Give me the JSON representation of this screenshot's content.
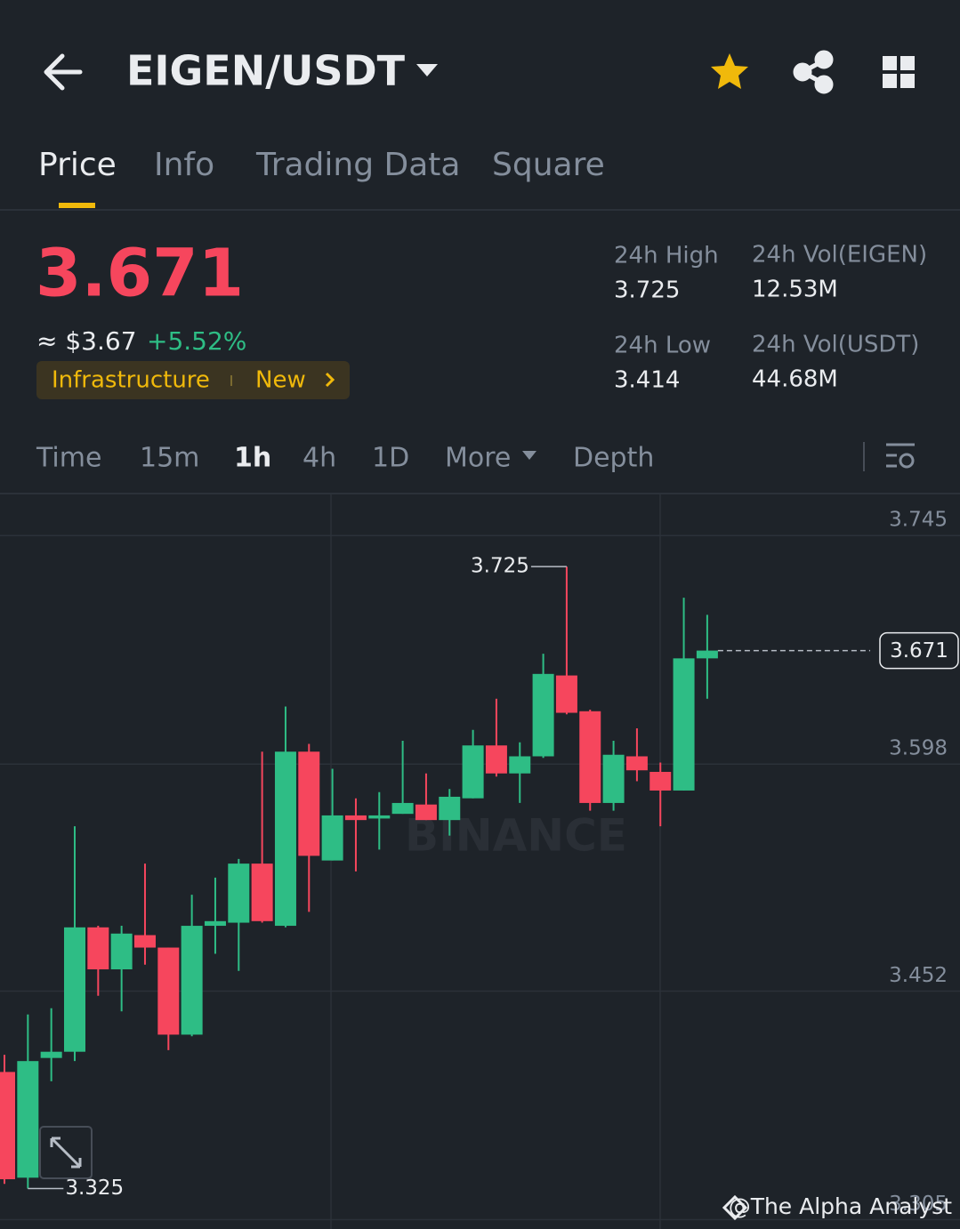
{
  "header": {
    "pair": "EIGEN/USDT"
  },
  "tabs": [
    "Price",
    "Info",
    "Trading Data",
    "Square"
  ],
  "price": {
    "value": "3.671",
    "fiat": "≈ $3.67",
    "change": "+5.52%",
    "tags": [
      "Infrastructure",
      "New"
    ]
  },
  "stats": [
    {
      "label": "24h High",
      "value": "3.725"
    },
    {
      "label": "24h Vol(EIGEN)",
      "value": "12.53M"
    },
    {
      "label": "24h Low",
      "value": "3.414"
    },
    {
      "label": "24h Vol(USDT)",
      "value": "44.68M"
    }
  ],
  "intervals": [
    "Time",
    "15m",
    "1h",
    "4h",
    "1D",
    "More",
    "Depth"
  ],
  "watermark": "BINANCE",
  "credit": "@The Alpha Analyst",
  "chart_data": {
    "type": "candlestick",
    "up_color": "#2ebd85",
    "down_color": "#f6465d",
    "grid": true,
    "ylim": [
      3.299,
      3.772
    ],
    "yticks": [
      3.745,
      3.598,
      3.452,
      3.305
    ],
    "high_label": "3.725",
    "low_label": "3.325",
    "open": [
      3.4,
      3.332,
      3.409,
      3.413,
      3.493,
      3.466,
      3.488,
      3.48,
      3.424,
      3.494,
      3.496,
      3.534,
      3.494,
      3.606,
      3.536,
      3.565,
      3.563,
      3.566,
      3.572,
      3.562,
      3.576,
      3.61,
      3.592,
      3.603,
      3.655,
      3.632,
      3.573,
      3.603,
      3.593,
      3.581,
      3.666
    ],
    "high": [
      3.411,
      3.437,
      3.441,
      3.558,
      3.494,
      3.494,
      3.534,
      3.48,
      3.514,
      3.525,
      3.537,
      3.606,
      3.635,
      3.611,
      3.595,
      3.576,
      3.58,
      3.613,
      3.592,
      3.582,
      3.62,
      3.64,
      3.612,
      3.669,
      3.725,
      3.633,
      3.613,
      3.621,
      3.599,
      3.705,
      3.694
    ],
    "low": [
      3.328,
      3.325,
      3.394,
      3.407,
      3.449,
      3.439,
      3.469,
      3.414,
      3.423,
      3.476,
      3.465,
      3.496,
      3.493,
      3.503,
      3.536,
      3.529,
      3.543,
      3.566,
      3.562,
      3.552,
      3.576,
      3.59,
      3.573,
      3.602,
      3.63,
      3.568,
      3.568,
      3.587,
      3.558,
      3.581,
      3.64
    ],
    "close": [
      3.331,
      3.407,
      3.413,
      3.493,
      3.466,
      3.489,
      3.48,
      3.424,
      3.494,
      3.497,
      3.534,
      3.497,
      3.606,
      3.539,
      3.565,
      3.562,
      3.565,
      3.573,
      3.562,
      3.577,
      3.61,
      3.592,
      3.603,
      3.656,
      3.631,
      3.573,
      3.604,
      3.594,
      3.581,
      3.666,
      3.671
    ]
  }
}
